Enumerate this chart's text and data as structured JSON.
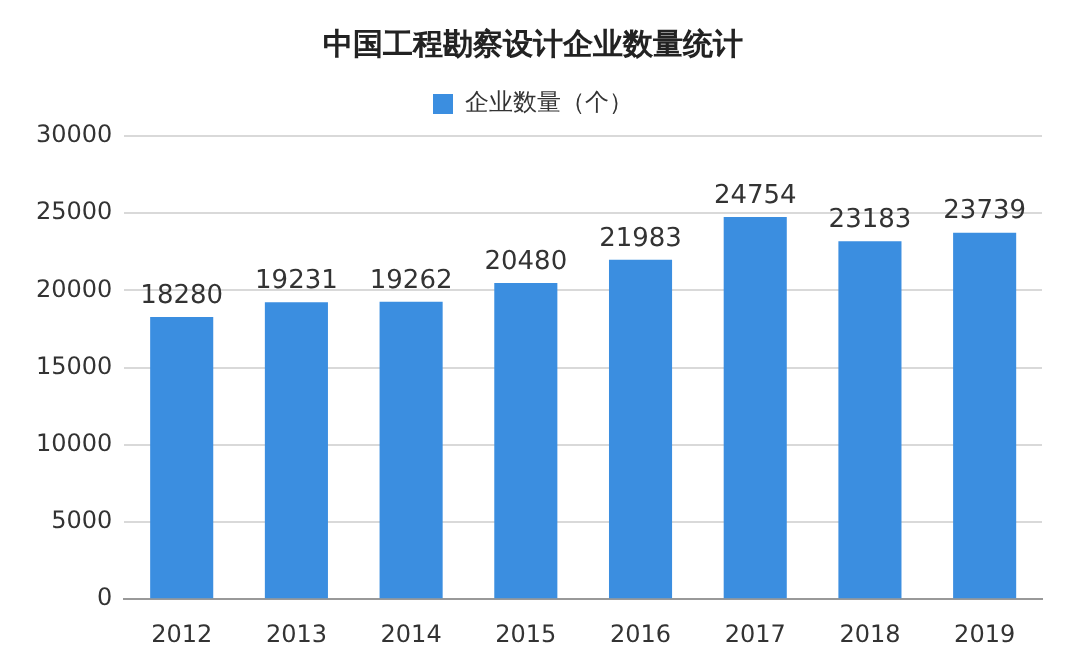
{
  "chart_data": {
    "type": "bar",
    "title": "中国工程勘察设计企业数量统计",
    "categories": [
      "2012",
      "2013",
      "2014",
      "2015",
      "2016",
      "2017",
      "2018",
      "2019"
    ],
    "series": [
      {
        "name": "企业数量（个）",
        "color": "#3b8ee0",
        "values": [
          18280,
          19231,
          19262,
          20480,
          21983,
          24754,
          23183,
          23739
        ]
      }
    ],
    "ylim": [
      0,
      30000
    ],
    "yticks": [
      0,
      5000,
      10000,
      15000,
      20000,
      25000,
      30000
    ],
    "grid": "y",
    "legend": "top",
    "data_labels": true
  }
}
